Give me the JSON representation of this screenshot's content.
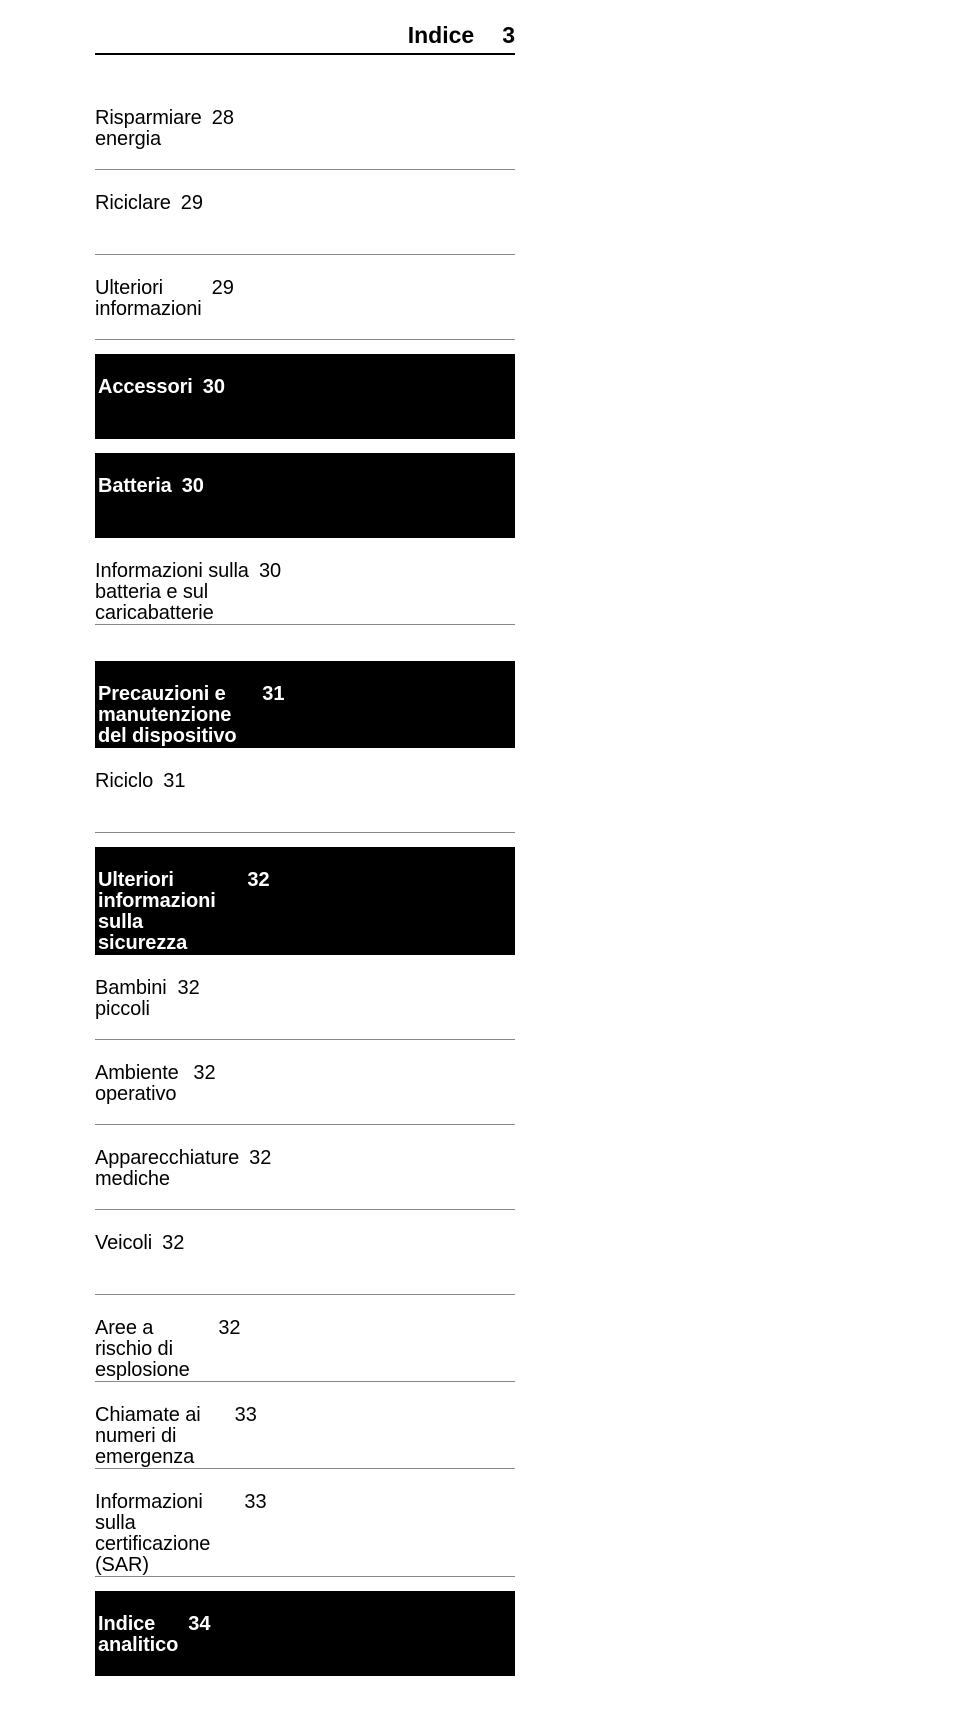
{
  "header": {
    "title": "Indice",
    "page": "3"
  },
  "sections": [
    {
      "rows": [
        {
          "label": "Risparmiare energia",
          "page": "28",
          "style": "plain"
        },
        {
          "label": "Riciclare",
          "page": "29",
          "style": "plain"
        },
        {
          "label": "Ulteriori informazioni",
          "page": "29",
          "style": "plain"
        }
      ],
      "gap_after": "small"
    },
    {
      "rows": [
        {
          "label": "Accessori",
          "page": "30",
          "style": "bold-bar"
        }
      ],
      "gap_after": "small"
    },
    {
      "rows": [
        {
          "label": "Batteria",
          "page": "30",
          "style": "bold-bar"
        },
        {
          "label": "Informazioni sulla batteria e sul caricabatterie",
          "page": "30",
          "style": "plain",
          "multiline": true
        }
      ],
      "gap_after": "large"
    },
    {
      "rows": [
        {
          "label": "Precauzioni e manutenzione del dispositivo",
          "page": "31",
          "style": "bold-bar",
          "multiline": true
        },
        {
          "label": "Riciclo",
          "page": "31",
          "style": "plain"
        }
      ],
      "gap_after": "small"
    },
    {
      "rows": [
        {
          "label": "Ulteriori informazioni sulla sicurezza",
          "page": "32",
          "style": "bold-bar",
          "multiline": true
        },
        {
          "label": "Bambini piccoli",
          "page": "32",
          "style": "plain"
        },
        {
          "label": "Ambiente operativo",
          "page": "32",
          "style": "plain"
        },
        {
          "label": "Apparecchiature mediche",
          "page": "32",
          "style": "plain"
        },
        {
          "label": "Veicoli",
          "page": "32",
          "style": "plain"
        },
        {
          "label": "Aree a rischio di esplosione",
          "page": "32",
          "style": "plain"
        },
        {
          "label": "Chiamate ai numeri di emergenza",
          "page": "33",
          "style": "plain"
        },
        {
          "label": "Informazioni sulla certificazione (SAR)",
          "page": "33",
          "style": "plain",
          "multiline": true
        }
      ],
      "gap_after": "small"
    },
    {
      "rows": [
        {
          "label": "Indice analitico",
          "page": "34",
          "style": "bold-bar"
        }
      ],
      "gap_after": "none"
    }
  ]
}
